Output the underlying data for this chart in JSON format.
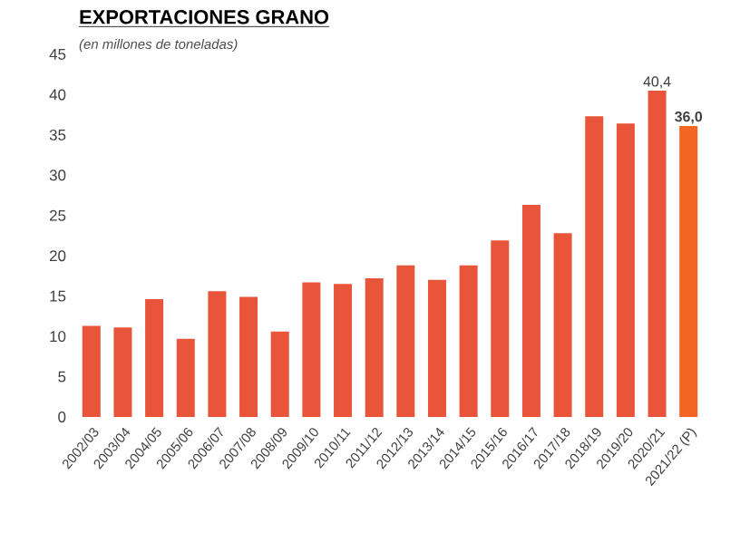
{
  "chart_data": {
    "type": "bar",
    "title": "EXPORTACIONES GRANO",
    "subtitle": "(en millones de toneladas)",
    "categories": [
      "2002/03",
      "2003/04",
      "2004/05",
      "2005/06",
      "2006/07",
      "2007/08",
      "2008/09",
      "2009/10",
      "2010/11",
      "2011/12",
      "2012/13",
      "2013/14",
      "2014/15",
      "2015/16",
      "2016/17",
      "2017/18",
      "2018/19",
      "2019/20",
      "2020/21",
      "2021/22 (P)"
    ],
    "values": [
      11.2,
      11.0,
      14.5,
      9.6,
      15.5,
      14.8,
      10.5,
      16.6,
      16.4,
      17.1,
      18.7,
      16.9,
      18.7,
      21.8,
      26.2,
      22.7,
      37.2,
      36.3,
      40.4,
      36.0
    ],
    "colors": [
      "#e8553a",
      "#e8553a",
      "#e8553a",
      "#e8553a",
      "#e8553a",
      "#e8553a",
      "#e8553a",
      "#e8553a",
      "#e8553a",
      "#e8553a",
      "#e8553a",
      "#e8553a",
      "#e8553a",
      "#e8553a",
      "#e8553a",
      "#e8553a",
      "#e8553a",
      "#e8553a",
      "#e8553a",
      "#f26522"
    ],
    "value_labels": [
      null,
      null,
      null,
      null,
      null,
      null,
      null,
      null,
      null,
      null,
      null,
      null,
      null,
      null,
      null,
      null,
      null,
      null,
      "40,4",
      "**36,0**"
    ],
    "ylim": [
      0,
      45
    ],
    "yticks": [
      0,
      5,
      10,
      15,
      20,
      25,
      30,
      35,
      40,
      45
    ],
    "grid": false
  }
}
